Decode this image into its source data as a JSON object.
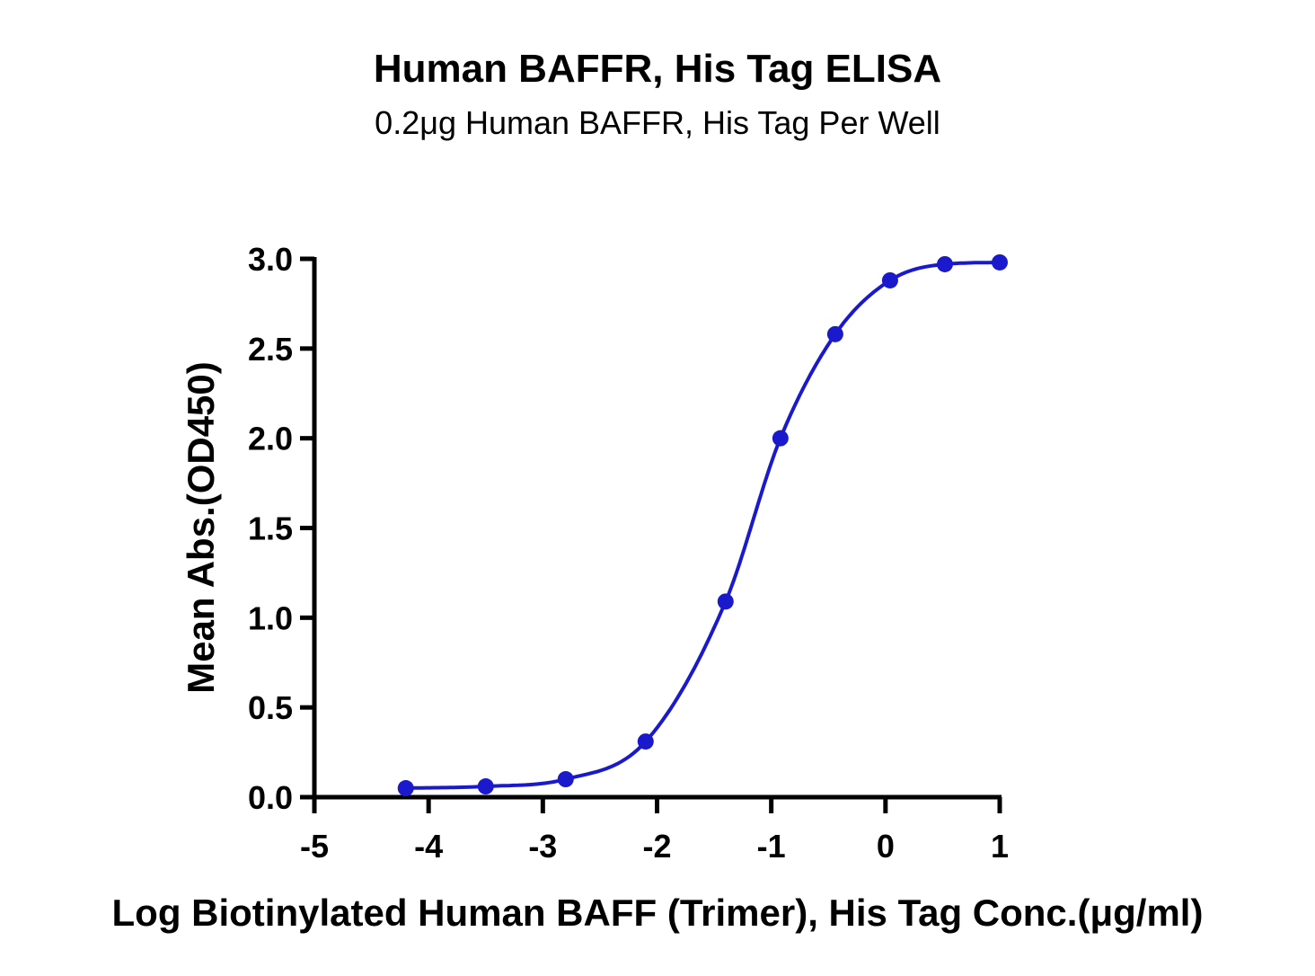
{
  "chart_data": {
    "type": "scatter",
    "title": "Human BAFFR, His Tag ELISA",
    "subtitle": "0.2μg Human BAFFR, His Tag Per Well",
    "xlabel": "Log Biotinylated Human BAFF (Trimer), His Tag Conc.(μg/ml)",
    "ylabel": "Mean Abs.(OD450)",
    "xlim": [
      -5,
      1
    ],
    "ylim": [
      0,
      3.0
    ],
    "xticks": [
      "-5",
      "-4",
      "-3",
      "-2",
      "-1",
      "0",
      "1"
    ],
    "yticks": [
      "0.0",
      "0.5",
      "1.0",
      "1.5",
      "2.0",
      "2.5",
      "3.0"
    ],
    "grid": false,
    "color": "#1a1acc",
    "series": [
      {
        "x": [
          -4.2,
          -3.5,
          -2.8,
          -2.1,
          -1.4,
          -0.92,
          -0.44,
          0.04,
          0.52,
          1.0
        ],
        "y": [
          0.05,
          0.06,
          0.1,
          0.31,
          1.09,
          2.0,
          2.58,
          2.88,
          2.97,
          2.98
        ],
        "fit": "four-parameter logistic curve"
      }
    ]
  }
}
